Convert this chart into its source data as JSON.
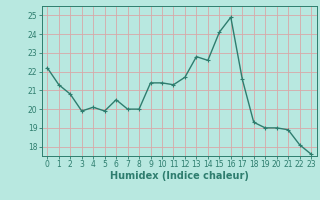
{
  "x": [
    0,
    1,
    2,
    3,
    4,
    5,
    6,
    7,
    8,
    9,
    10,
    11,
    12,
    13,
    14,
    15,
    16,
    17,
    18,
    19,
    20,
    21,
    22,
    23
  ],
  "y": [
    22.2,
    21.3,
    20.8,
    19.9,
    20.1,
    19.9,
    20.5,
    20.0,
    20.0,
    21.4,
    21.4,
    21.3,
    21.7,
    22.8,
    22.6,
    24.1,
    24.9,
    21.6,
    19.3,
    19.0,
    19.0,
    18.9,
    18.1,
    17.6
  ],
  "line_color": "#2e7d6e",
  "bg_color": "#b8e8e0",
  "grid_color": "#d8a8a8",
  "xlabel": "Humidex (Indice chaleur)",
  "ylim": [
    17.5,
    25.5
  ],
  "yticks": [
    18,
    19,
    20,
    21,
    22,
    23,
    24,
    25
  ],
  "xticks": [
    0,
    1,
    2,
    3,
    4,
    5,
    6,
    7,
    8,
    9,
    10,
    11,
    12,
    13,
    14,
    15,
    16,
    17,
    18,
    19,
    20,
    21,
    22,
    23
  ],
  "marker": "+",
  "linewidth": 1.0,
  "markersize": 3.5,
  "tick_fontsize": 5.5,
  "xlabel_fontsize": 7.0
}
